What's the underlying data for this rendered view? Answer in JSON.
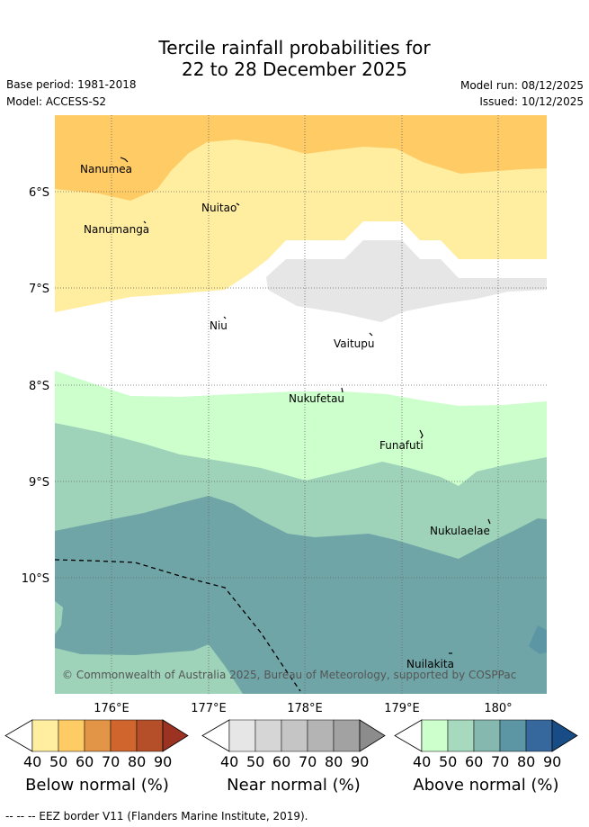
{
  "title": {
    "line1": "Tercile rainfall probabilities for",
    "line2": "22 to 28 December 2025"
  },
  "meta": {
    "base_period": "Base period: 1981-2018",
    "model": "Model: ACCESS-S2",
    "model_run": "Model run: 08/12/2025",
    "issued": "Issued: 10/12/2025"
  },
  "map": {
    "lat_labels": [
      "6°S",
      "7°S",
      "8°S",
      "9°S",
      "10°S"
    ],
    "lon_labels": [
      "176°E",
      "177°E",
      "178°E",
      "179°E",
      "180°"
    ],
    "islands": [
      "Nanumea",
      "Nuitao",
      "Nanumanga",
      "Niu",
      "Vaitupu",
      "Nukufetau",
      "Funafuti",
      "Nukulaelae",
      "Nuilakita"
    ],
    "copyright": "© Commonwealth of Australia 2025, Bureau of Meteorology, supported by COSPPac",
    "colors": {
      "below_40": "#FFEDA0",
      "below_50": "#FECB65",
      "near_40": "#E6E6E6",
      "above_40": "#CCFFCC",
      "above_50": "#9ED3BA",
      "above_60": "#70A5A7",
      "above_70": "#5C96A5"
    }
  },
  "colorbars": [
    {
      "label": "Below normal (%)",
      "ticks": [
        "40",
        "50",
        "60",
        "70",
        "80",
        "90"
      ],
      "colors": [
        "#FFEDA0",
        "#FECB65",
        "#E29447",
        "#D0662E",
        "#B54F2A",
        "#9C3322"
      ]
    },
    {
      "label": "Near normal (%)",
      "ticks": [
        "40",
        "50",
        "60",
        "70",
        "80",
        "90"
      ],
      "colors": [
        "#E6E6E6",
        "#D6D6D6",
        "#C5C5C5",
        "#B4B4B4",
        "#A2A2A2",
        "#8C8C8C"
      ]
    },
    {
      "label": "Above normal (%)",
      "ticks": [
        "40",
        "50",
        "60",
        "70",
        "80",
        "90"
      ],
      "colors": [
        "#CCFFCC",
        "#A6D9BE",
        "#85B8AE",
        "#5C96A5",
        "#37689D",
        "#184C86"
      ]
    }
  ],
  "footer": "-- -- -- EEZ border V11 (Flanders Marine Institute, 2019)."
}
